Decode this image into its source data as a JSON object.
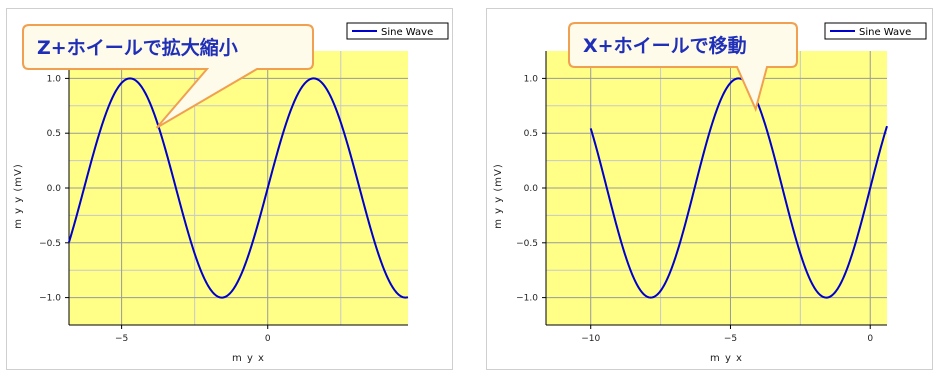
{
  "chart_data": [
    {
      "type": "line",
      "xlabel": "m y x",
      "ylabel": "m y y (mV)",
      "xlim": [
        -6.8,
        4.8
      ],
      "ylim": [
        -1.25,
        1.25
      ],
      "xticks": [
        -5,
        0
      ],
      "xtick_labels": [
        "−5",
        "0"
      ],
      "yticks": [
        1.0,
        0.5,
        0.0,
        -0.5,
        -1.0
      ],
      "ytick_labels": [
        "1.0",
        "0.5",
        "0.0",
        "−0.5",
        "−1.0"
      ],
      "grid": true,
      "legend_position": "top-right",
      "series": [
        {
          "name": "Sine Wave",
          "function": "sin(x)",
          "x_range": [
            -6.8,
            4.8
          ],
          "color": "#0000cc"
        }
      ],
      "annotation": {
        "text": "Z+ホイールで拡大縮小",
        "points_to": [
          -3.8,
          0.55
        ]
      },
      "plot_background": "#ffff88"
    },
    {
      "type": "line",
      "xlabel": "m y x",
      "ylabel": "m y y (mV)",
      "xlim": [
        -11.6,
        0.6
      ],
      "ylim": [
        -1.25,
        1.25
      ],
      "xticks": [
        -10,
        -5,
        0
      ],
      "xtick_labels": [
        "−10",
        "−5",
        "0"
      ],
      "yticks": [
        1.0,
        0.5,
        0.0,
        -0.5,
        -1.0
      ],
      "ytick_labels": [
        "1.0",
        "0.5",
        "0.0",
        "−0.5",
        "−1.0"
      ],
      "grid": true,
      "legend_position": "top-right",
      "series": [
        {
          "name": "Sine Wave",
          "function": "sin(x)",
          "x_range": [
            -10,
            0.6
          ],
          "color": "#0000cc"
        }
      ],
      "annotation": {
        "text": "X+ホイールで移動",
        "points_to": [
          -4.1,
          0.72
        ]
      },
      "plot_background": "#ffff88"
    }
  ]
}
